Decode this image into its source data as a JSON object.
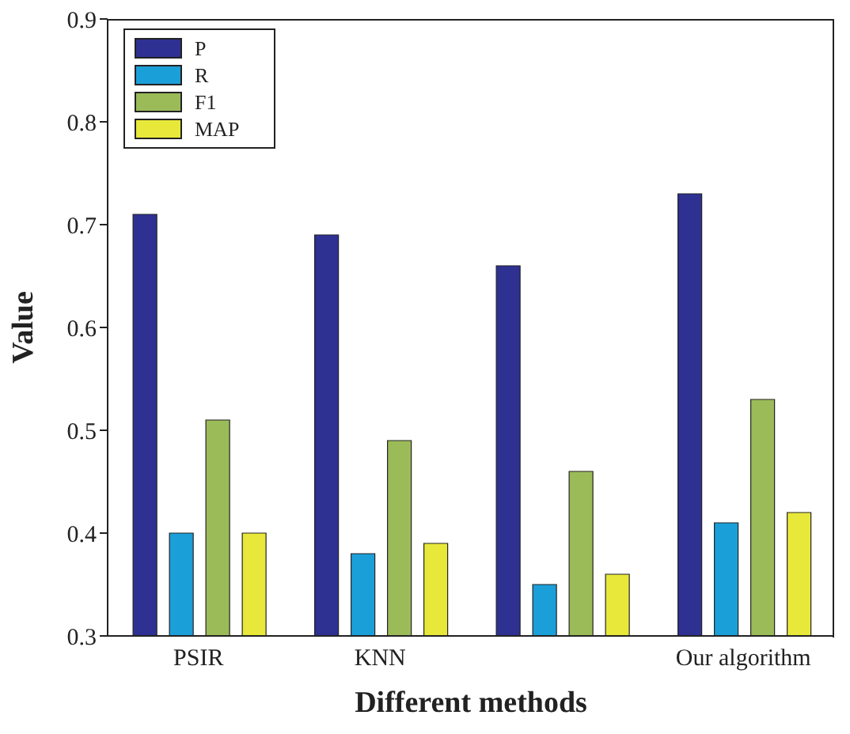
{
  "chart_data": {
    "type": "bar",
    "xlabel": "Different methods",
    "ylabel": "Value",
    "categories": [
      "PSIR",
      "KNN",
      null,
      "Our algorithm"
    ],
    "series": [
      {
        "name": "P",
        "color": "#2e3192",
        "values": [
          0.71,
          0.69,
          0.66,
          0.73
        ]
      },
      {
        "name": "R",
        "color": "#1b9fd8",
        "values": [
          0.4,
          0.38,
          0.35,
          0.41
        ]
      },
      {
        "name": "F1",
        "color": "#9bbb59",
        "values": [
          0.51,
          0.49,
          0.46,
          0.53
        ]
      },
      {
        "name": "MAP",
        "color": "#e8e83a",
        "values": [
          0.4,
          0.39,
          0.36,
          0.42
        ]
      }
    ],
    "ylim": [
      0.3,
      0.9
    ],
    "yticks": [
      0.3,
      0.4,
      0.5,
      0.6,
      0.7,
      0.8,
      0.9
    ],
    "grid": false,
    "legend": "top left"
  }
}
